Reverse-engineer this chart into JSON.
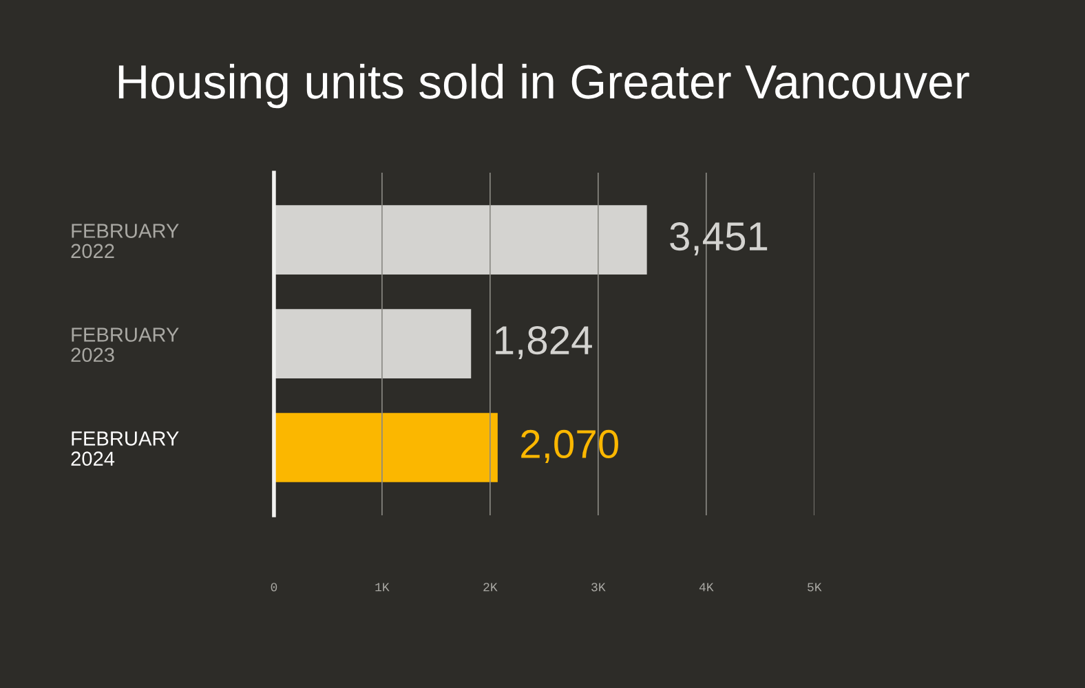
{
  "chart_data": {
    "type": "bar",
    "orientation": "horizontal",
    "title": "Housing units sold in Greater Vancouver",
    "categories": [
      "FEBRUARY\n2022",
      "FEBRUARY\n2023",
      "FEBRUARY\n2024"
    ],
    "values": [
      3451,
      1824,
      2070
    ],
    "colors": [
      "#d4d3d0",
      "#d4d3d0",
      "#fbb700"
    ],
    "value_labels": [
      "3,451",
      "1,824",
      "2,070"
    ],
    "xlim": [
      0,
      5000
    ],
    "xticks": [
      {
        "value": 0,
        "label": "0"
      },
      {
        "value": 1000,
        "label": "1K"
      },
      {
        "value": 2000,
        "label": "2K"
      },
      {
        "value": 3000,
        "label": "3K"
      },
      {
        "value": 4000,
        "label": "4K"
      },
      {
        "value": 5000,
        "label": "5K"
      }
    ],
    "grid": "x"
  }
}
